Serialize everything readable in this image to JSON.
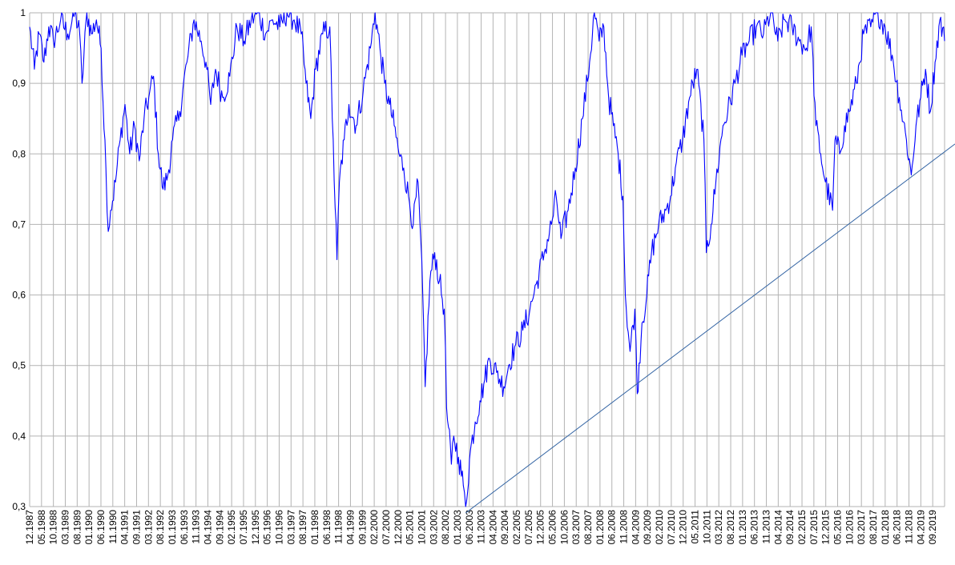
{
  "chart_data": {
    "type": "line",
    "title": "",
    "xlabel": "",
    "ylabel": "",
    "ylim": [
      0.3,
      1.0
    ],
    "xlim": [
      "1987-12",
      "2019-12"
    ],
    "grid": true,
    "legend": "none",
    "y_ticks": [
      "0,3",
      "0,4",
      "0,5",
      "0,6",
      "0,7",
      "0,8",
      "0,9",
      "1"
    ],
    "x_tick_labels": [
      "12.1987",
      "05.1988",
      "10.1988",
      "03.1989",
      "08.1989",
      "01.1990",
      "06.1990",
      "11.1990",
      "04.1991",
      "09.1991",
      "03.1992",
      "08.1992",
      "01.1993",
      "06.1993",
      "11.1993",
      "04.1994",
      "09.1994",
      "02.1995",
      "07.1995",
      "12.1995",
      "05.1996",
      "10.1996",
      "03.1997",
      "08.1997",
      "01.1998",
      "06.1998",
      "11.1998",
      "04.1999",
      "09.1999",
      "02.2000",
      "07.2000",
      "12.2000",
      "05.2001",
      "10.2001",
      "03.2002",
      "08.2002",
      "01.2003",
      "06.2003",
      "11.2003",
      "04.2004",
      "09.2004",
      "02.2005",
      "07.2005",
      "12.2005",
      "05.2006",
      "10.2006",
      "03.2007",
      "08.2007",
      "01.2008",
      "06.2008",
      "11.2008",
      "04.2009",
      "09.2009",
      "02.2010",
      "07.2010",
      "12.2010",
      "05.2011",
      "10.2011",
      "03.2012",
      "08.2012",
      "01.2013",
      "06.2013",
      "11.2013",
      "04.2014",
      "09.2014",
      "02.2015",
      "07.2015",
      "12.2015",
      "05.2016",
      "10.2016",
      "03.2017",
      "08.2017",
      "01.2018",
      "06.2018",
      "11.2018",
      "04.2019",
      "09.2019"
    ],
    "series": [
      {
        "color": "#0000ff",
        "x": [
          "1987-12",
          "1988-02",
          "1988-04",
          "1988-06",
          "1988-08",
          "1988-10",
          "1989-01",
          "1989-04",
          "1989-07",
          "1989-09",
          "1989-10",
          "1989-12",
          "1990-02",
          "1990-04",
          "1990-06",
          "1990-08",
          "1990-09",
          "1990-10",
          "1990-12",
          "1991-02",
          "1991-04",
          "1991-06",
          "1991-08",
          "1991-10",
          "1991-12",
          "1992-02",
          "1992-04",
          "1992-06",
          "1992-08",
          "1992-10",
          "1992-12",
          "1993-03",
          "1993-06",
          "1993-09",
          "1993-12",
          "1994-02",
          "1994-04",
          "1994-06",
          "1994-09",
          "1994-12",
          "1995-03",
          "1995-06",
          "1995-09",
          "1995-12",
          "1996-03",
          "1996-06",
          "1996-09",
          "1996-12",
          "1997-03",
          "1997-06",
          "1997-08",
          "1997-10",
          "1997-12",
          "1998-03",
          "1998-06",
          "1998-07",
          "1998-09",
          "1998-10",
          "1998-12",
          "1999-02",
          "1999-05",
          "1999-08",
          "1999-11",
          "2000-01",
          "2000-03",
          "2000-05",
          "2000-07",
          "2000-09",
          "2000-11",
          "2001-01",
          "2001-03",
          "2001-05",
          "2001-07",
          "2001-09",
          "2001-10",
          "2001-12",
          "2002-02",
          "2002-04",
          "2002-06",
          "2002-07",
          "2002-09",
          "2002-10",
          "2002-12",
          "2003-02",
          "2003-03",
          "2003-05",
          "2003-07",
          "2003-09",
          "2003-11",
          "2004-01",
          "2004-04",
          "2004-07",
          "2004-09",
          "2004-12",
          "2005-03",
          "2005-06",
          "2005-09",
          "2005-12",
          "2006-03",
          "2006-05",
          "2006-07",
          "2006-10",
          "2007-01",
          "2007-04",
          "2007-07",
          "2007-09",
          "2007-11",
          "2008-01",
          "2008-03",
          "2008-05",
          "2008-07",
          "2008-09",
          "2008-10",
          "2008-12",
          "2009-02",
          "2009-03",
          "2009-05",
          "2009-07",
          "2009-09",
          "2009-12",
          "2010-03",
          "2010-05",
          "2010-07",
          "2010-10",
          "2011-01",
          "2011-04",
          "2011-07",
          "2011-08",
          "2011-10",
          "2011-12",
          "2012-03",
          "2012-05",
          "2012-08",
          "2012-11",
          "2013-02",
          "2013-05",
          "2013-08",
          "2013-11",
          "2014-02",
          "2014-05",
          "2014-08",
          "2014-11",
          "2015-02",
          "2015-04",
          "2015-06",
          "2015-08",
          "2015-10",
          "2016-01",
          "2016-02",
          "2016-04",
          "2016-06",
          "2016-08",
          "2016-11",
          "2017-02",
          "2017-05",
          "2017-08",
          "2017-11",
          "2018-02",
          "2018-05",
          "2018-08",
          "2018-10",
          "2018-12",
          "2019-02",
          "2019-04",
          "2019-06",
          "2019-08",
          "2019-10",
          "2019-12"
        ],
        "values": [
          0.98,
          0.92,
          0.97,
          0.93,
          0.98,
          0.96,
          0.99,
          0.97,
          1.0,
          0.97,
          0.9,
          1.0,
          0.97,
          0.99,
          0.95,
          0.78,
          0.69,
          0.72,
          0.76,
          0.82,
          0.87,
          0.8,
          0.84,
          0.79,
          0.85,
          0.88,
          0.91,
          0.8,
          0.75,
          0.77,
          0.82,
          0.86,
          0.93,
          0.99,
          0.96,
          0.93,
          0.87,
          0.92,
          0.88,
          0.91,
          0.98,
          0.96,
          0.99,
          1.0,
          0.97,
          0.99,
          0.98,
          1.0,
          0.99,
          0.97,
          0.9,
          0.85,
          0.92,
          0.97,
          0.98,
          0.85,
          0.65,
          0.76,
          0.82,
          0.87,
          0.84,
          0.89,
          0.95,
          1.0,
          0.95,
          0.9,
          0.87,
          0.84,
          0.8,
          0.78,
          0.74,
          0.7,
          0.76,
          0.6,
          0.47,
          0.62,
          0.66,
          0.62,
          0.58,
          0.44,
          0.36,
          0.4,
          0.37,
          0.33,
          0.3,
          0.38,
          0.42,
          0.45,
          0.48,
          0.51,
          0.49,
          0.47,
          0.5,
          0.53,
          0.55,
          0.58,
          0.62,
          0.66,
          0.7,
          0.74,
          0.68,
          0.72,
          0.78,
          0.85,
          0.93,
          1.0,
          0.96,
          0.98,
          0.88,
          0.84,
          0.8,
          0.74,
          0.6,
          0.52,
          0.58,
          0.46,
          0.56,
          0.6,
          0.66,
          0.7,
          0.72,
          0.74,
          0.78,
          0.82,
          0.88,
          0.92,
          0.82,
          0.66,
          0.7,
          0.76,
          0.84,
          0.86,
          0.9,
          0.94,
          0.96,
          0.98,
          0.97,
          1.0,
          0.96,
          0.99,
          0.98,
          0.96,
          0.95,
          0.98,
          0.84,
          0.8,
          0.76,
          0.72,
          0.82,
          0.8,
          0.84,
          0.86,
          0.9,
          0.97,
          0.98,
          1.0,
          0.98,
          0.94,
          0.88,
          0.82,
          0.77,
          0.84,
          0.88,
          0.92,
          0.86,
          0.93,
          0.99,
          0.96
        ]
      }
    ],
    "trendline": {
      "from": {
        "x": "2003-03",
        "y": 0.3
      },
      "to": {
        "x": "2019-12",
        "y": 0.805
      },
      "color": "#3465a4"
    }
  }
}
